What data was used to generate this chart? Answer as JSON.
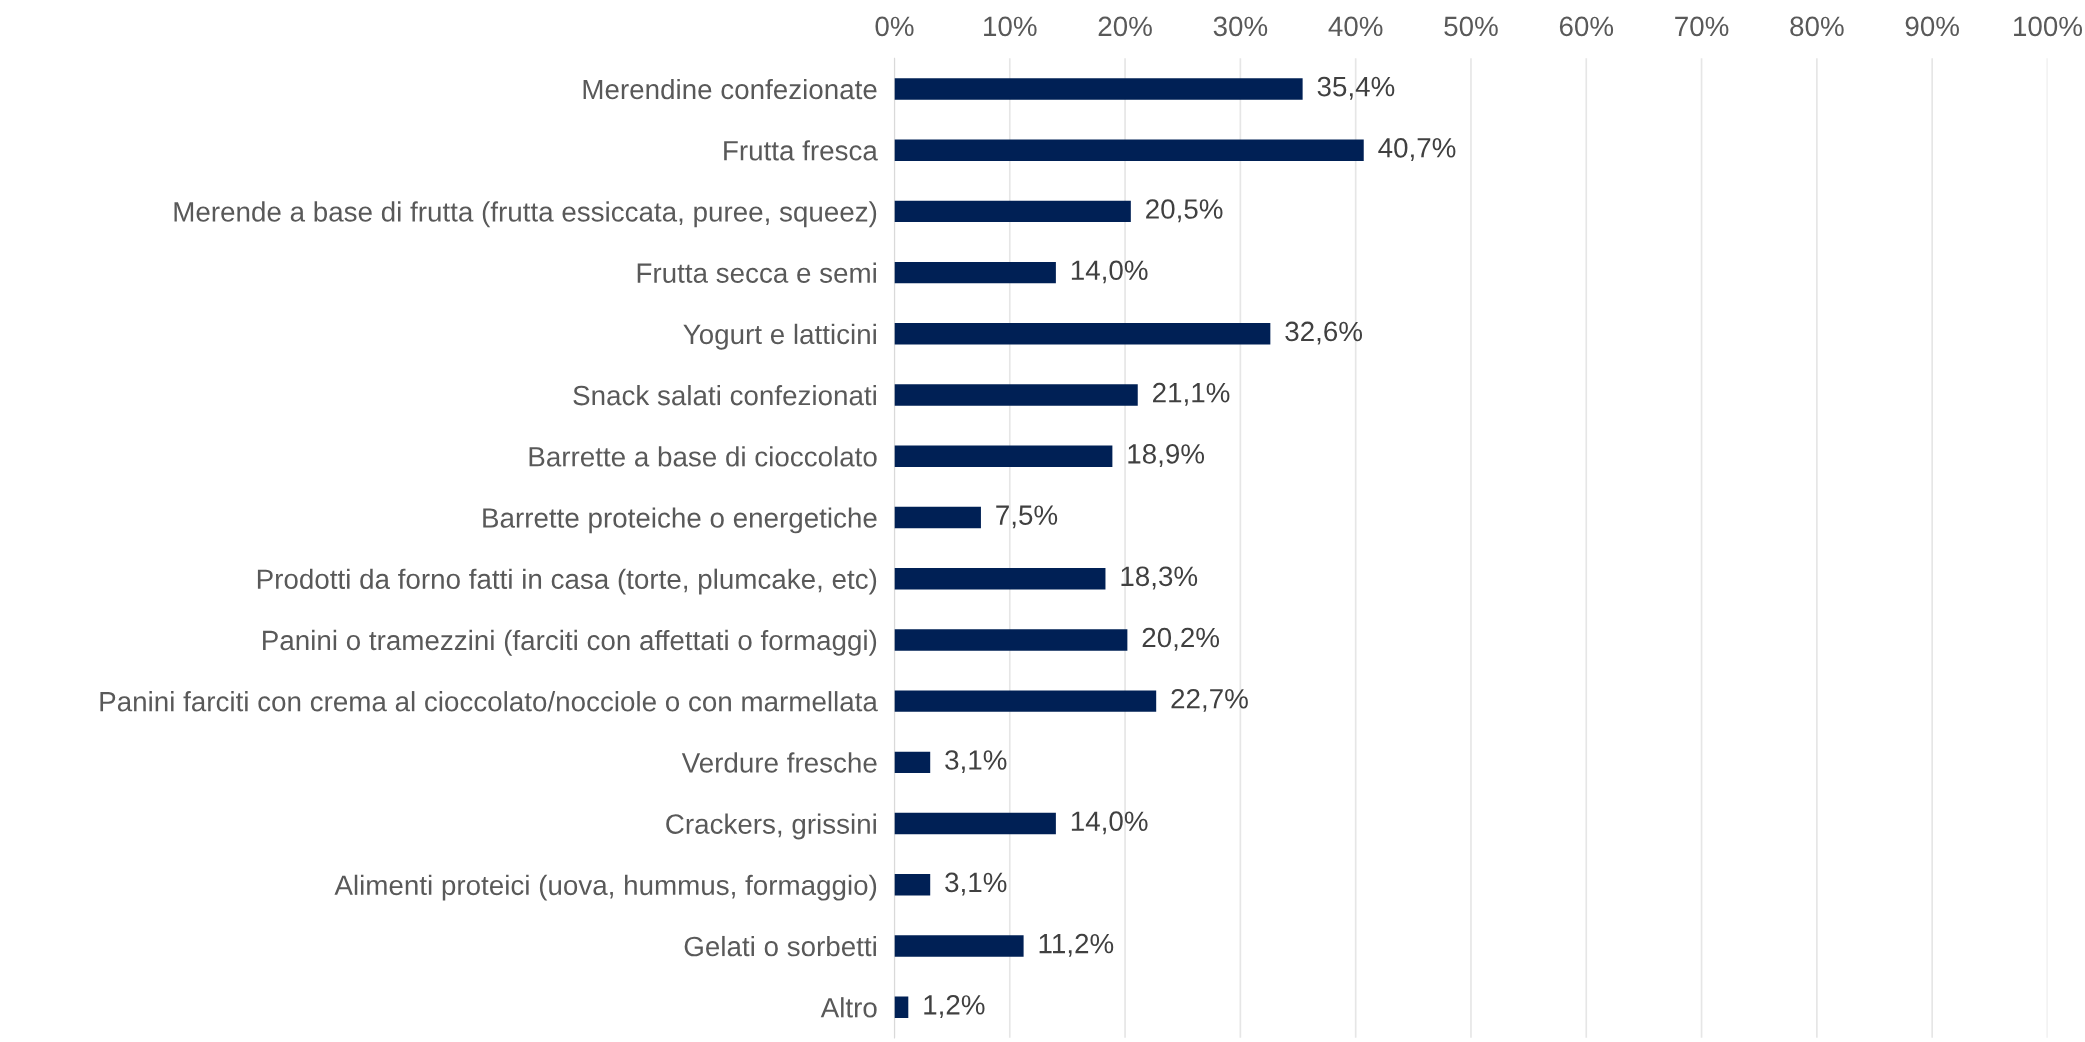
{
  "chart_data": {
    "type": "bar",
    "orientation": "horizontal",
    "categories": [
      "Merendine confezionate",
      "Frutta fresca",
      "Merende a base di frutta (frutta essiccata, puree, squeez)",
      "Frutta secca e semi",
      "Yogurt e latticini",
      "Snack salati confezionati",
      "Barrette a base di cioccolato",
      "Barrette proteiche o energetiche",
      "Prodotti da forno fatti in casa (torte, plumcake, etc)",
      "Panini o tramezzini (farciti con affettati o formaggi)",
      "Panini farciti con crema al cioccolato/nocciole o con marmellata",
      "Verdure fresche",
      "Crackers, grissini",
      "Alimenti proteici (uova, hummus, formaggio)",
      "Gelati o sorbetti",
      "Altro"
    ],
    "values": [
      35.4,
      40.7,
      20.5,
      14.0,
      32.6,
      21.1,
      18.9,
      7.5,
      18.3,
      20.2,
      22.7,
      3.1,
      14.0,
      3.1,
      11.2,
      1.2
    ],
    "value_labels": [
      "35,4%",
      "40,7%",
      "20,5%",
      "14,0%",
      "32,6%",
      "21,1%",
      "18,9%",
      "7,5%",
      "18,3%",
      "20,2%",
      "22,7%",
      "3,1%",
      "14,0%",
      "3,1%",
      "11,2%",
      "1,2%"
    ],
    "color": "#002055",
    "xlim": [
      0,
      100
    ],
    "xticks": [
      {
        "value": 0,
        "label": "0%"
      },
      {
        "value": 10,
        "label": "10%"
      },
      {
        "value": 20,
        "label": "20%"
      },
      {
        "value": 30,
        "label": "30%"
      },
      {
        "value": 40,
        "label": "40%"
      },
      {
        "value": 50,
        "label": "50%"
      },
      {
        "value": 60,
        "label": "60%"
      },
      {
        "value": 70,
        "label": "70%"
      },
      {
        "value": 80,
        "label": "80%"
      },
      {
        "value": 90,
        "label": "90%"
      },
      {
        "value": 100,
        "label": "100%"
      }
    ],
    "grid": "x",
    "legend": false
  }
}
